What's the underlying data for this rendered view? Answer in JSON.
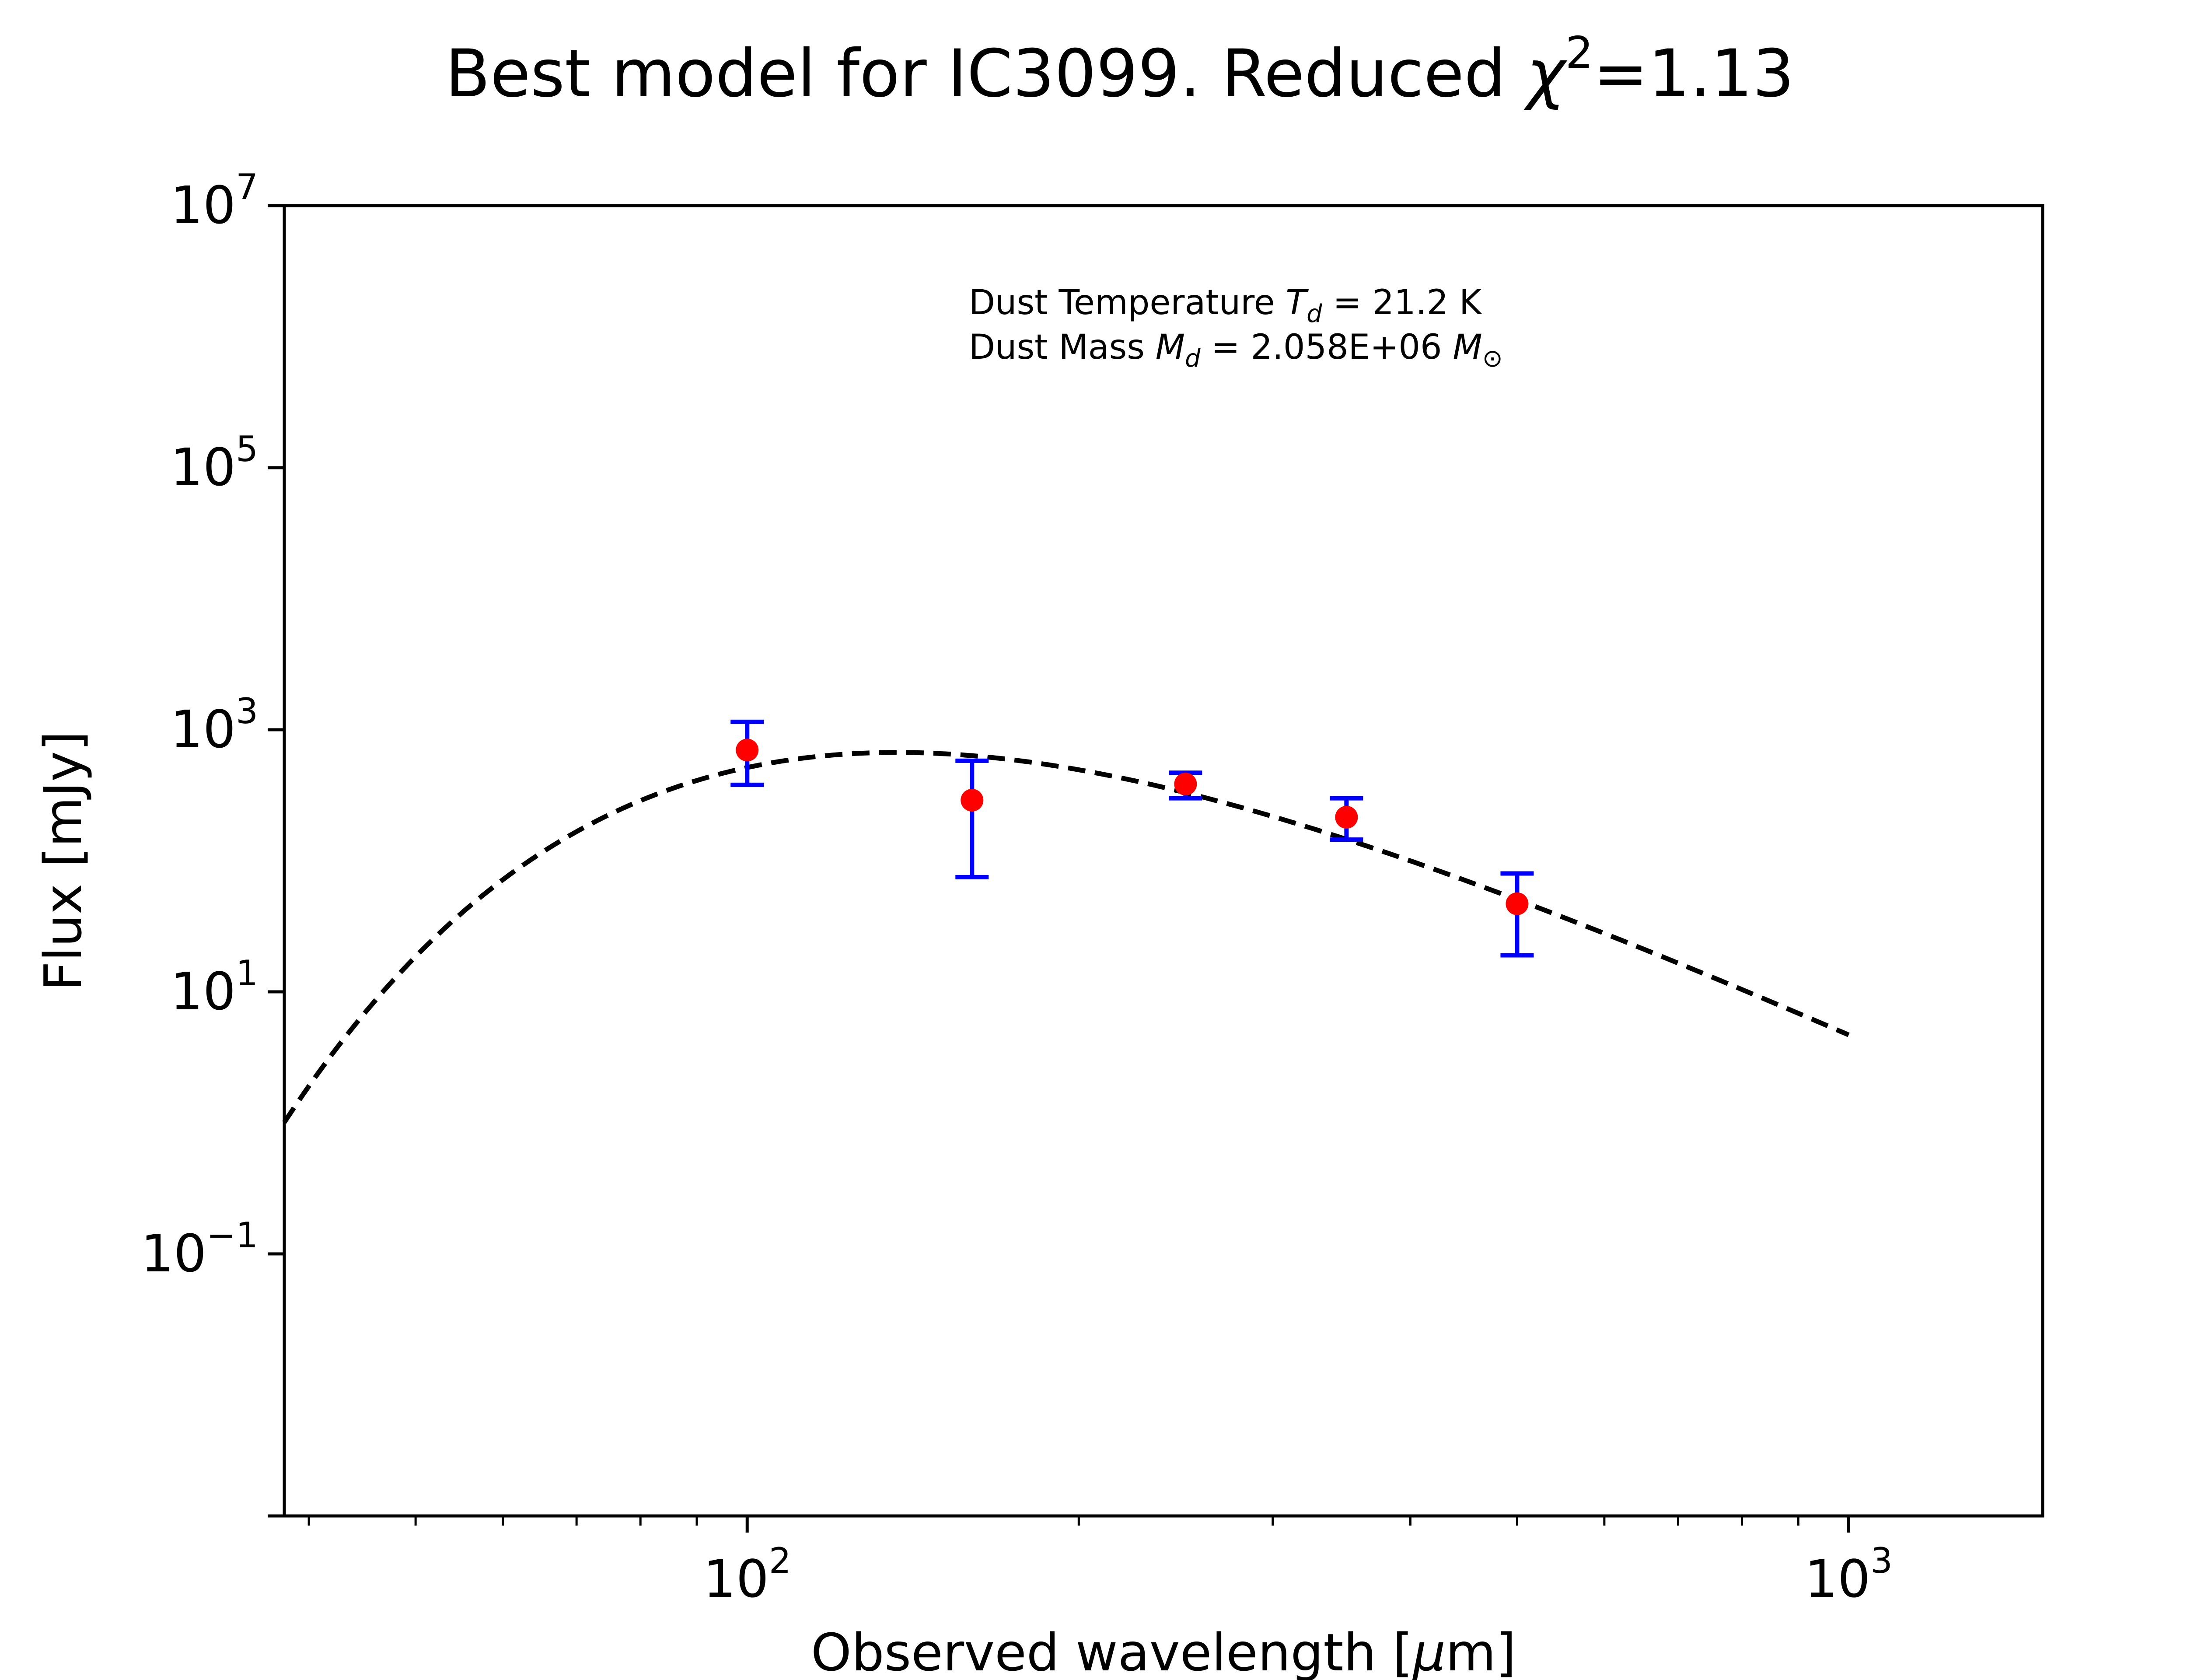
{
  "chart_data": {
    "type": "scatter",
    "title": {
      "prefix": "Best model for IC3099. Reduced ",
      "chi": "χ",
      "chi_exp": "2",
      "suffix": "=1.13"
    },
    "xlabel": {
      "text": "Observed wavelength [",
      "mu": "μ",
      "unit": "m]"
    },
    "ylabel": "Flux [mJy]",
    "x_scale": "log",
    "y_scale": "log",
    "xlim": [
      38,
      1500
    ],
    "ylim": [
      0.001,
      10000000
    ],
    "x_ticks": [
      {
        "base": "10",
        "exp": "2",
        "value": 100
      },
      {
        "base": "10",
        "exp": "3",
        "value": 1000
      }
    ],
    "y_ticks": [
      {
        "base": "10",
        "exp": "7",
        "value": 10000000
      },
      {
        "base": "10",
        "exp": "5",
        "value": 100000
      },
      {
        "base": "10",
        "exp": "3",
        "value": 1000
      },
      {
        "base": "10",
        "exp": "1",
        "value": 10
      },
      {
        "base": "10",
        "exp": "−1",
        "value": 0.1
      }
    ],
    "x_minor_ticks": [
      40,
      50,
      60,
      70,
      80,
      90,
      200,
      300,
      400,
      500,
      600,
      700,
      800,
      900
    ],
    "annotations": {
      "temperature": {
        "prefix": "Dust Temperature ",
        "sym": "T",
        "sub": "d",
        "value": " = 21.2 K"
      },
      "mass": {
        "prefix": "Dust Mass ",
        "sym": "M",
        "sub": "d",
        "value": " = 2.058E+06 ",
        "unit_sym": "M",
        "unit_sub": "⊙"
      }
    },
    "series": [
      {
        "kind": "observations",
        "marker_color": "#ff0000",
        "errorbar_color": "#0000ff",
        "points": [
          {
            "x": 100,
            "y": 700,
            "ylow": 380,
            "yhigh": 1150
          },
          {
            "x": 160,
            "y": 290,
            "ylow": 75,
            "yhigh": 580
          },
          {
            "x": 250,
            "y": 385,
            "ylow": 300,
            "yhigh": 470
          },
          {
            "x": 350,
            "y": 215,
            "ylow": 145,
            "yhigh": 300
          },
          {
            "x": 500,
            "y": 47,
            "ylow": 19,
            "yhigh": 80
          }
        ]
      },
      {
        "kind": "model",
        "line_color": "#000000",
        "line_style": "dashed",
        "temperature_K": 21.2,
        "x_range": [
          38,
          1000
        ],
        "anchor": {
          "x": 140,
          "y": 670
        }
      }
    ]
  }
}
